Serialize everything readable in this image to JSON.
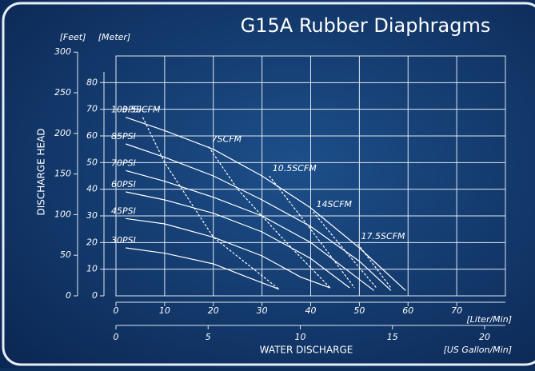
{
  "chart_data": {
    "type": "line",
    "title": "G15A Rubber Diaphragms",
    "y_label": "DISCHARGE HEAD",
    "x_label": "WATER DISCHARGE",
    "y_unit_label": "[Meter]",
    "y2_unit_label": "[Feet]",
    "x_unit_label": "[Liter/Min]",
    "x2_unit_label": "[US Gallon/Min]",
    "xlim": [
      0,
      80
    ],
    "xticks": [
      0,
      10,
      20,
      30,
      40,
      50,
      60,
      70
    ],
    "x2lim": [
      0,
      21.13
    ],
    "x2ticks": [
      0,
      5,
      10,
      15,
      20
    ],
    "ylim": [
      0,
      90
    ],
    "yticks": [
      0,
      10,
      20,
      30,
      40,
      50,
      60,
      70,
      80
    ],
    "y2lim": [
      0,
      295.3
    ],
    "y2ticks": [
      0,
      50,
      100,
      150,
      200,
      250,
      300
    ],
    "grid": true,
    "series": [
      {
        "name": "100PSI",
        "color": "#ffffff",
        "dashed": false,
        "x": [
          2,
          10,
          20,
          30,
          40,
          50,
          59.5
        ],
        "values": [
          67,
          62,
          55,
          45,
          33,
          18,
          2
        ]
      },
      {
        "name": "85PSI",
        "color": "#ffffff",
        "dashed": false,
        "x": [
          2,
          10,
          20,
          30,
          40,
          50,
          56.5
        ],
        "values": [
          57,
          52,
          45,
          36,
          26,
          13,
          2
        ]
      },
      {
        "name": "70PSI",
        "color": "#ffffff",
        "dashed": false,
        "x": [
          2,
          10,
          20,
          30,
          40,
          53
        ],
        "values": [
          47,
          43,
          37,
          30,
          20,
          2
        ]
      },
      {
        "name": "60PSI",
        "color": "#ffffff",
        "dashed": false,
        "x": [
          2,
          10,
          20,
          30,
          40,
          48
        ],
        "values": [
          39,
          36,
          31,
          24,
          14,
          3
        ]
      },
      {
        "name": "45PSI",
        "color": "#ffffff",
        "dashed": false,
        "x": [
          2,
          10,
          20,
          30,
          38,
          44
        ],
        "values": [
          29,
          27,
          22,
          15,
          7,
          3
        ]
      },
      {
        "name": "30PSI",
        "color": "#ffffff",
        "dashed": false,
        "x": [
          2,
          10,
          20,
          27,
          33.5
        ],
        "values": [
          18,
          16,
          12,
          7,
          2.5
        ]
      },
      {
        "name": "3.5SCFM",
        "color": "#ffffff",
        "dashed": true,
        "x": [
          5.5,
          10,
          20,
          33.5
        ],
        "values": [
          67,
          50,
          22,
          2.5
        ]
      },
      {
        "name": "7SCFM",
        "color": "#ffffff",
        "dashed": true,
        "x": [
          19,
          25,
          35,
          44
        ],
        "values": [
          56,
          40,
          20,
          3
        ]
      },
      {
        "name": "10.5SCFM",
        "color": "#ffffff",
        "dashed": true,
        "x": [
          31.5,
          40,
          49
        ],
        "values": [
          45,
          25,
          3
        ]
      },
      {
        "name": "14SCFM",
        "color": "#ffffff",
        "dashed": true,
        "x": [
          40.5,
          47,
          53.5
        ],
        "values": [
          31.5,
          17,
          3
        ]
      },
      {
        "name": "17.5SCFM",
        "color": "#ffffff",
        "dashed": true,
        "x": [
          49.7,
          56.5
        ],
        "values": [
          19.5,
          3
        ]
      }
    ]
  }
}
